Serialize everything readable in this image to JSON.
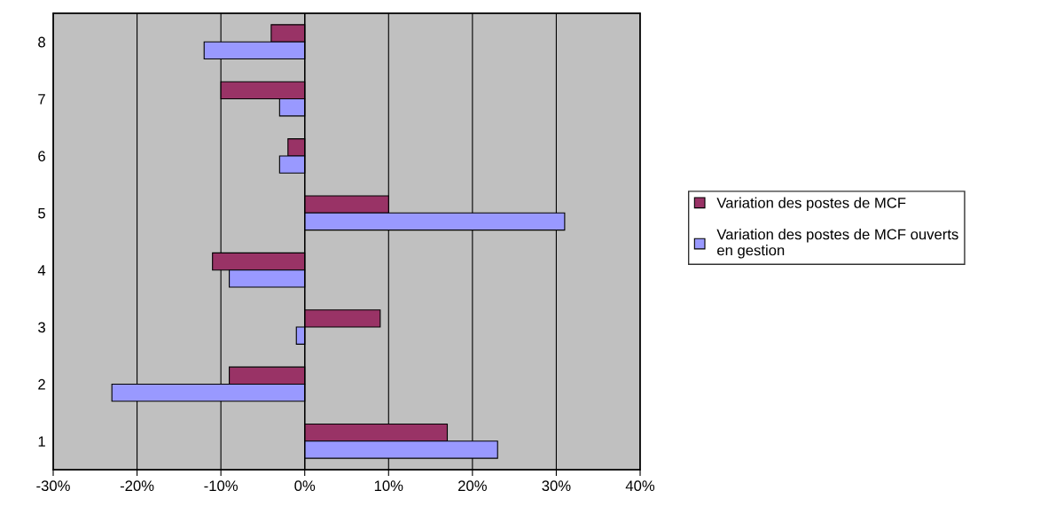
{
  "chart_data": {
    "type": "bar",
    "orientation": "horizontal",
    "categories": [
      "8",
      "7",
      "6",
      "5",
      "4",
      "3",
      "2",
      "1"
    ],
    "series": [
      {
        "name": "Variation des postes de MCF",
        "color": "#993366",
        "values": [
          -4,
          -10,
          -2,
          10,
          -11,
          9,
          -9,
          17
        ]
      },
      {
        "name": "Variation des postes de MCF ouverts en gestion",
        "color": "#9999ff",
        "values": [
          -12,
          -3,
          -3,
          31,
          -9,
          -1,
          -23,
          23
        ]
      }
    ],
    "xlim": [
      -30,
      40
    ],
    "xticks": [
      {
        "value": -30,
        "label": "-30%"
      },
      {
        "value": -20,
        "label": "-20%"
      },
      {
        "value": -10,
        "label": "-10%"
      },
      {
        "value": 0,
        "label": "0%"
      },
      {
        "value": 10,
        "label": "10%"
      },
      {
        "value": 20,
        "label": "20%"
      },
      {
        "value": 30,
        "label": "30%"
      },
      {
        "value": 40,
        "label": "40%"
      }
    ],
    "grid": "x",
    "legend": "right"
  }
}
